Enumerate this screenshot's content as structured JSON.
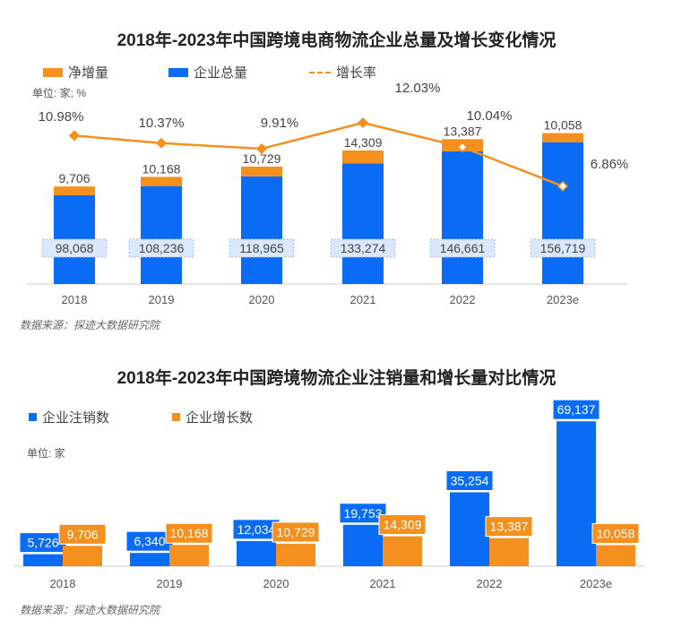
{
  "chart_data": [
    {
      "type": "bar",
      "title": "2018年-2023年中国跨境电商物流企业总量及增长变化情况",
      "unit": "单位: 家; %",
      "source": "数据来源：探迹大数据研究院",
      "categories": [
        "2018",
        "2019",
        "2020",
        "2021",
        "2022",
        "2023e"
      ],
      "series": [
        {
          "name": "净增量",
          "kind": "stacked-bar",
          "color": "#F5901E",
          "values": [
            9706,
            10168,
            10729,
            14309,
            13387,
            10058
          ],
          "labels": [
            "9,706",
            "10,168",
            "10,729",
            "14,309",
            "13,387",
            "10,058"
          ]
        },
        {
          "name": "企业总量",
          "kind": "stacked-bar",
          "color": "#0A6CF5",
          "values": [
            98068,
            108236,
            118965,
            133274,
            146661,
            156719
          ],
          "labels": [
            "98,068",
            "108,236",
            "118,965",
            "133,274",
            "146,661",
            "156,719"
          ]
        },
        {
          "name": "增长率",
          "kind": "line",
          "color": "#F5901E",
          "values": [
            10.98,
            10.37,
            9.91,
            12.03,
            10.04,
            6.86
          ],
          "labels": [
            "10.98%",
            "10.37%",
            "9.91%",
            "12.03%",
            "10.04%",
            "6.86%"
          ]
        }
      ]
    },
    {
      "type": "bar",
      "title": "2018年-2023年中国跨境物流企业注销量和增长量对比情况",
      "unit": "单位: 家",
      "source": "数据来源：探迹大数据研究院",
      "categories": [
        "2018",
        "2019",
        "2020",
        "2021",
        "2022",
        "2023e"
      ],
      "series": [
        {
          "name": "企业注销数",
          "color": "#0A6CF5",
          "values": [
            5726,
            6340,
            12034,
            19753,
            35254,
            69137
          ],
          "labels": [
            "5,726",
            "6,340",
            "12,034",
            "19,753",
            "35,254",
            "69,137"
          ]
        },
        {
          "name": "企业增长数",
          "color": "#F5901E",
          "values": [
            9706,
            10168,
            10729,
            14309,
            13387,
            10058
          ],
          "labels": [
            "9,706",
            "10,168",
            "10,729",
            "14,309",
            "13,387",
            "10,058"
          ]
        }
      ]
    }
  ]
}
